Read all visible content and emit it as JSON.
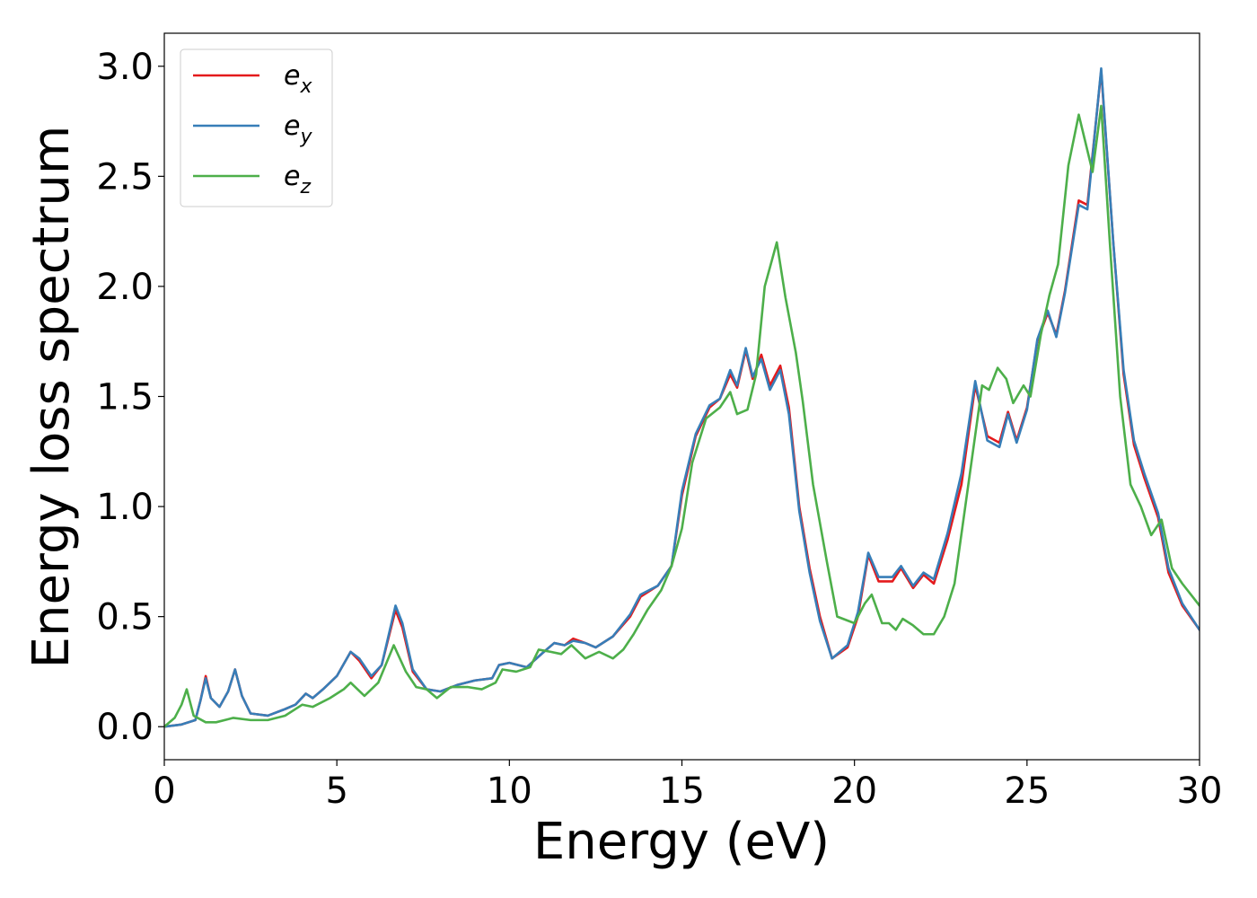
{
  "chart_data": {
    "type": "line",
    "xlabel": "Energy (eV)",
    "ylabel": "Energy loss spectrum",
    "xlim": [
      0,
      30
    ],
    "ylim": [
      -0.15,
      3.15
    ],
    "xticks": [
      0,
      5,
      10,
      15,
      20,
      25,
      30
    ],
    "xtick_labels": [
      "0",
      "5",
      "10",
      "15",
      "20",
      "25",
      "30"
    ],
    "yticks": [
      0.0,
      0.5,
      1.0,
      1.5,
      2.0,
      2.5,
      3.0
    ],
    "ytick_labels": [
      "0.0",
      "0.5",
      "1.0",
      "1.5",
      "2.0",
      "2.5",
      "3.0"
    ],
    "grid": false,
    "legend_position": "top-left",
    "series": [
      {
        "name": "e_x",
        "label_base": "e",
        "label_sub": "x",
        "color": "#e41a1c",
        "points": [
          [
            0,
            0
          ],
          [
            0.5,
            0.01
          ],
          [
            0.9,
            0.03
          ],
          [
            1.05,
            0.12
          ],
          [
            1.2,
            0.23
          ],
          [
            1.35,
            0.13
          ],
          [
            1.6,
            0.09
          ],
          [
            1.85,
            0.16
          ],
          [
            2.05,
            0.26
          ],
          [
            2.25,
            0.14
          ],
          [
            2.5,
            0.06
          ],
          [
            3.0,
            0.05
          ],
          [
            3.5,
            0.08
          ],
          [
            3.8,
            0.1
          ],
          [
            4.1,
            0.15
          ],
          [
            4.3,
            0.13
          ],
          [
            4.6,
            0.17
          ],
          [
            5.0,
            0.23
          ],
          [
            5.4,
            0.34
          ],
          [
            5.65,
            0.3
          ],
          [
            6.0,
            0.22
          ],
          [
            6.3,
            0.28
          ],
          [
            6.7,
            0.53
          ],
          [
            6.9,
            0.45
          ],
          [
            7.2,
            0.25
          ],
          [
            7.6,
            0.17
          ],
          [
            8.0,
            0.16
          ],
          [
            8.5,
            0.19
          ],
          [
            9.0,
            0.21
          ],
          [
            9.5,
            0.22
          ],
          [
            9.7,
            0.28
          ],
          [
            10.0,
            0.29
          ],
          [
            10.5,
            0.27
          ],
          [
            11.0,
            0.34
          ],
          [
            11.3,
            0.38
          ],
          [
            11.6,
            0.37
          ],
          [
            11.85,
            0.4
          ],
          [
            12.2,
            0.38
          ],
          [
            12.5,
            0.36
          ],
          [
            13.0,
            0.41
          ],
          [
            13.5,
            0.5
          ],
          [
            13.8,
            0.59
          ],
          [
            14.3,
            0.64
          ],
          [
            14.7,
            0.73
          ],
          [
            15.0,
            1.05
          ],
          [
            15.4,
            1.32
          ],
          [
            15.8,
            1.45
          ],
          [
            16.1,
            1.49
          ],
          [
            16.4,
            1.6
          ],
          [
            16.6,
            1.54
          ],
          [
            16.85,
            1.71
          ],
          [
            17.05,
            1.58
          ],
          [
            17.3,
            1.69
          ],
          [
            17.55,
            1.55
          ],
          [
            17.85,
            1.64
          ],
          [
            18.1,
            1.45
          ],
          [
            18.4,
            1.0
          ],
          [
            18.7,
            0.72
          ],
          [
            19.0,
            0.5
          ],
          [
            19.35,
            0.31
          ],
          [
            19.8,
            0.36
          ],
          [
            20.1,
            0.5
          ],
          [
            20.4,
            0.78
          ],
          [
            20.7,
            0.66
          ],
          [
            21.1,
            0.66
          ],
          [
            21.35,
            0.72
          ],
          [
            21.7,
            0.63
          ],
          [
            22.0,
            0.69
          ],
          [
            22.3,
            0.65
          ],
          [
            22.7,
            0.85
          ],
          [
            23.1,
            1.1
          ],
          [
            23.5,
            1.55
          ],
          [
            23.85,
            1.32
          ],
          [
            24.2,
            1.29
          ],
          [
            24.45,
            1.43
          ],
          [
            24.7,
            1.3
          ],
          [
            25.0,
            1.45
          ],
          [
            25.3,
            1.75
          ],
          [
            25.6,
            1.88
          ],
          [
            25.85,
            1.78
          ],
          [
            26.1,
            1.98
          ],
          [
            26.5,
            2.39
          ],
          [
            26.75,
            2.37
          ],
          [
            27.15,
            2.98
          ],
          [
            27.5,
            2.2
          ],
          [
            27.8,
            1.6
          ],
          [
            28.1,
            1.28
          ],
          [
            28.4,
            1.13
          ],
          [
            28.8,
            0.95
          ],
          [
            29.1,
            0.7
          ],
          [
            29.5,
            0.55
          ],
          [
            30.0,
            0.44
          ]
        ]
      },
      {
        "name": "e_y",
        "label_base": "e",
        "label_sub": "y",
        "color": "#377eb8",
        "points": [
          [
            0,
            0
          ],
          [
            0.5,
            0.01
          ],
          [
            0.9,
            0.03
          ],
          [
            1.05,
            0.12
          ],
          [
            1.2,
            0.22
          ],
          [
            1.35,
            0.13
          ],
          [
            1.6,
            0.09
          ],
          [
            1.85,
            0.16
          ],
          [
            2.05,
            0.26
          ],
          [
            2.25,
            0.14
          ],
          [
            2.5,
            0.06
          ],
          [
            3.0,
            0.05
          ],
          [
            3.5,
            0.08
          ],
          [
            3.8,
            0.1
          ],
          [
            4.1,
            0.15
          ],
          [
            4.3,
            0.13
          ],
          [
            4.6,
            0.17
          ],
          [
            5.0,
            0.23
          ],
          [
            5.4,
            0.34
          ],
          [
            5.65,
            0.31
          ],
          [
            6.0,
            0.23
          ],
          [
            6.3,
            0.28
          ],
          [
            6.7,
            0.55
          ],
          [
            6.9,
            0.47
          ],
          [
            7.2,
            0.26
          ],
          [
            7.6,
            0.17
          ],
          [
            8.0,
            0.16
          ],
          [
            8.5,
            0.19
          ],
          [
            9.0,
            0.21
          ],
          [
            9.5,
            0.22
          ],
          [
            9.7,
            0.28
          ],
          [
            10.0,
            0.29
          ],
          [
            10.5,
            0.27
          ],
          [
            11.0,
            0.34
          ],
          [
            11.3,
            0.38
          ],
          [
            11.6,
            0.37
          ],
          [
            11.85,
            0.39
          ],
          [
            12.2,
            0.38
          ],
          [
            12.5,
            0.36
          ],
          [
            13.0,
            0.41
          ],
          [
            13.5,
            0.51
          ],
          [
            13.8,
            0.6
          ],
          [
            14.3,
            0.64
          ],
          [
            14.7,
            0.73
          ],
          [
            15.0,
            1.07
          ],
          [
            15.4,
            1.33
          ],
          [
            15.8,
            1.46
          ],
          [
            16.1,
            1.49
          ],
          [
            16.4,
            1.62
          ],
          [
            16.6,
            1.55
          ],
          [
            16.85,
            1.72
          ],
          [
            17.05,
            1.59
          ],
          [
            17.3,
            1.67
          ],
          [
            17.55,
            1.53
          ],
          [
            17.85,
            1.62
          ],
          [
            18.1,
            1.42
          ],
          [
            18.4,
            0.98
          ],
          [
            18.7,
            0.7
          ],
          [
            19.0,
            0.48
          ],
          [
            19.35,
            0.31
          ],
          [
            19.8,
            0.37
          ],
          [
            20.1,
            0.52
          ],
          [
            20.4,
            0.79
          ],
          [
            20.7,
            0.68
          ],
          [
            21.1,
            0.68
          ],
          [
            21.35,
            0.73
          ],
          [
            21.7,
            0.64
          ],
          [
            22.0,
            0.7
          ],
          [
            22.3,
            0.67
          ],
          [
            22.7,
            0.88
          ],
          [
            23.1,
            1.15
          ],
          [
            23.5,
            1.57
          ],
          [
            23.85,
            1.3
          ],
          [
            24.2,
            1.27
          ],
          [
            24.45,
            1.42
          ],
          [
            24.7,
            1.29
          ],
          [
            25.0,
            1.44
          ],
          [
            25.3,
            1.76
          ],
          [
            25.6,
            1.89
          ],
          [
            25.85,
            1.77
          ],
          [
            26.1,
            1.97
          ],
          [
            26.5,
            2.37
          ],
          [
            26.75,
            2.35
          ],
          [
            27.15,
            2.99
          ],
          [
            27.5,
            2.2
          ],
          [
            27.8,
            1.62
          ],
          [
            28.1,
            1.3
          ],
          [
            28.4,
            1.15
          ],
          [
            28.8,
            0.97
          ],
          [
            29.1,
            0.72
          ],
          [
            29.5,
            0.56
          ],
          [
            30.0,
            0.44
          ]
        ]
      },
      {
        "name": "e_z",
        "label_base": "e",
        "label_sub": "z",
        "color": "#4daf4a",
        "points": [
          [
            0,
            0
          ],
          [
            0.3,
            0.04
          ],
          [
            0.5,
            0.1
          ],
          [
            0.65,
            0.17
          ],
          [
            0.85,
            0.05
          ],
          [
            1.2,
            0.02
          ],
          [
            1.5,
            0.02
          ],
          [
            2.0,
            0.04
          ],
          [
            2.5,
            0.03
          ],
          [
            3.0,
            0.03
          ],
          [
            3.5,
            0.05
          ],
          [
            4.0,
            0.1
          ],
          [
            4.3,
            0.09
          ],
          [
            4.8,
            0.13
          ],
          [
            5.2,
            0.17
          ],
          [
            5.4,
            0.2
          ],
          [
            5.8,
            0.14
          ],
          [
            6.2,
            0.2
          ],
          [
            6.65,
            0.37
          ],
          [
            7.0,
            0.25
          ],
          [
            7.3,
            0.18
          ],
          [
            7.6,
            0.17
          ],
          [
            7.9,
            0.13
          ],
          [
            8.3,
            0.18
          ],
          [
            8.8,
            0.18
          ],
          [
            9.2,
            0.17
          ],
          [
            9.6,
            0.2
          ],
          [
            9.8,
            0.26
          ],
          [
            10.2,
            0.25
          ],
          [
            10.6,
            0.27
          ],
          [
            10.85,
            0.35
          ],
          [
            11.2,
            0.34
          ],
          [
            11.5,
            0.33
          ],
          [
            11.8,
            0.37
          ],
          [
            12.2,
            0.31
          ],
          [
            12.6,
            0.34
          ],
          [
            13.0,
            0.31
          ],
          [
            13.3,
            0.35
          ],
          [
            13.6,
            0.42
          ],
          [
            14.0,
            0.53
          ],
          [
            14.4,
            0.62
          ],
          [
            14.7,
            0.73
          ],
          [
            15.0,
            0.9
          ],
          [
            15.3,
            1.2
          ],
          [
            15.7,
            1.4
          ],
          [
            16.1,
            1.45
          ],
          [
            16.4,
            1.52
          ],
          [
            16.6,
            1.42
          ],
          [
            16.9,
            1.44
          ],
          [
            17.15,
            1.6
          ],
          [
            17.4,
            2.0
          ],
          [
            17.75,
            2.2
          ],
          [
            18.0,
            1.95
          ],
          [
            18.3,
            1.7
          ],
          [
            18.5,
            1.48
          ],
          [
            18.8,
            1.1
          ],
          [
            19.2,
            0.75
          ],
          [
            19.5,
            0.5
          ],
          [
            20.0,
            0.47
          ],
          [
            20.3,
            0.56
          ],
          [
            20.5,
            0.6
          ],
          [
            20.8,
            0.47
          ],
          [
            21.0,
            0.47
          ],
          [
            21.2,
            0.44
          ],
          [
            21.4,
            0.49
          ],
          [
            21.7,
            0.46
          ],
          [
            22.0,
            0.42
          ],
          [
            22.3,
            0.42
          ],
          [
            22.6,
            0.5
          ],
          [
            22.9,
            0.65
          ],
          [
            23.3,
            1.1
          ],
          [
            23.7,
            1.55
          ],
          [
            23.9,
            1.53
          ],
          [
            24.15,
            1.63
          ],
          [
            24.4,
            1.58
          ],
          [
            24.6,
            1.47
          ],
          [
            24.9,
            1.55
          ],
          [
            25.1,
            1.5
          ],
          [
            25.4,
            1.78
          ],
          [
            25.65,
            1.96
          ],
          [
            25.9,
            2.1
          ],
          [
            26.2,
            2.55
          ],
          [
            26.5,
            2.78
          ],
          [
            26.9,
            2.52
          ],
          [
            27.15,
            2.82
          ],
          [
            27.4,
            2.2
          ],
          [
            27.7,
            1.5
          ],
          [
            28.0,
            1.1
          ],
          [
            28.3,
            1.0
          ],
          [
            28.6,
            0.87
          ],
          [
            28.9,
            0.94
          ],
          [
            29.2,
            0.72
          ],
          [
            29.5,
            0.65
          ],
          [
            29.8,
            0.59
          ],
          [
            30.0,
            0.55
          ]
        ]
      }
    ]
  }
}
